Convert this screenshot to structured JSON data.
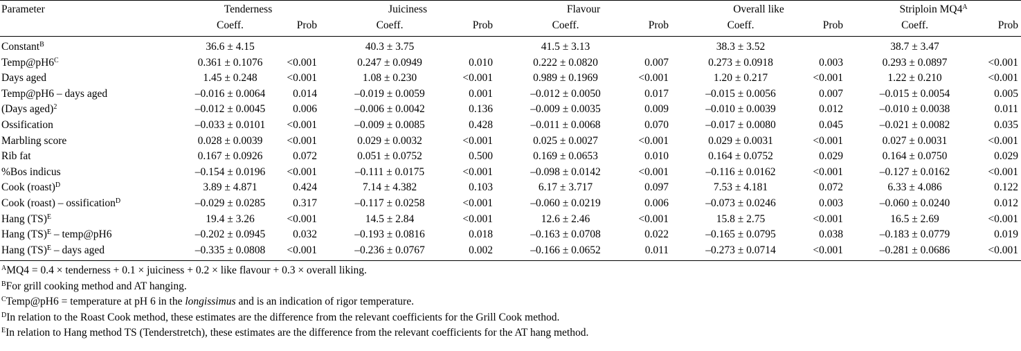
{
  "table": {
    "param_header": "Parameter",
    "groups": [
      {
        "name": "Tenderness",
        "sup": ""
      },
      {
        "name": "Juiciness",
        "sup": ""
      },
      {
        "name": "Flavour",
        "sup": ""
      },
      {
        "name": "Overall like",
        "sup": ""
      },
      {
        "name": "Striploin MQ4",
        "sup": "A"
      }
    ],
    "coeff_label": "Coeff.",
    "prob_label": "Prob",
    "rows": [
      {
        "label": "Constant",
        "sup": "B",
        "suffix": "",
        "values": [
          [
            "36.6 ± 4.15",
            ""
          ],
          [
            "40.3 ± 3.75",
            ""
          ],
          [
            "41.5 ± 3.13",
            ""
          ],
          [
            "38.3 ± 3.52",
            ""
          ],
          [
            "38.7 ± 3.47",
            ""
          ]
        ]
      },
      {
        "label": "Temp@pH6",
        "sup": "C",
        "suffix": "",
        "values": [
          [
            "0.361 ± 0.1076",
            "<0.001"
          ],
          [
            "0.247 ± 0.0949",
            "0.010"
          ],
          [
            "0.222 ± 0.0820",
            "0.007"
          ],
          [
            "0.273 ± 0.0918",
            "0.003"
          ],
          [
            "0.293 ± 0.0897",
            "<0.001"
          ]
        ]
      },
      {
        "label": "Days aged",
        "sup": "",
        "suffix": "",
        "values": [
          [
            "1.45 ± 0.248",
            "<0.001"
          ],
          [
            "1.08 ± 0.230",
            "<0.001"
          ],
          [
            "0.989 ± 0.1969",
            "<0.001"
          ],
          [
            "1.20 ± 0.217",
            "<0.001"
          ],
          [
            "1.22 ± 0.210",
            "<0.001"
          ]
        ]
      },
      {
        "label": "Temp@pH6 – days aged",
        "sup": "",
        "suffix": "",
        "values": [
          [
            "–0.016 ± 0.0064",
            "0.014"
          ],
          [
            "–0.019 ± 0.0059",
            "0.001"
          ],
          [
            "–0.012 ± 0.0050",
            "0.017"
          ],
          [
            "–0.015 ± 0.0056",
            "0.007"
          ],
          [
            "–0.015 ± 0.0054",
            "0.005"
          ]
        ]
      },
      {
        "label": "(Days aged)",
        "sup": "2",
        "suffix": "",
        "values": [
          [
            "–0.012 ± 0.0045",
            "0.006"
          ],
          [
            "–0.006 ± 0.0042",
            "0.136"
          ],
          [
            "–0.009 ± 0.0035",
            "0.009"
          ],
          [
            "–0.010 ± 0.0039",
            "0.012"
          ],
          [
            "–0.010 ± 0.0038",
            "0.011"
          ]
        ]
      },
      {
        "label": "Ossification",
        "sup": "",
        "suffix": "",
        "values": [
          [
            "–0.033 ± 0.0101",
            "<0.001"
          ],
          [
            "–0.009 ± 0.0085",
            "0.428"
          ],
          [
            "–0.011 ± 0.0068",
            "0.070"
          ],
          [
            "–0.017 ± 0.0080",
            "0.045"
          ],
          [
            "–0.021 ± 0.0082",
            "0.035"
          ]
        ]
      },
      {
        "label": "Marbling score",
        "sup": "",
        "suffix": "",
        "values": [
          [
            "0.028 ± 0.0039",
            "<0.001"
          ],
          [
            "0.029 ± 0.0032",
            "<0.001"
          ],
          [
            "0.025 ± 0.0027",
            "<0.001"
          ],
          [
            "0.029 ± 0.0031",
            "<0.001"
          ],
          [
            "0.027 ± 0.0031",
            "<0.001"
          ]
        ]
      },
      {
        "label": "Rib fat",
        "sup": "",
        "suffix": "",
        "values": [
          [
            "0.167 ± 0.0926",
            "0.072"
          ],
          [
            "0.051 ± 0.0752",
            "0.500"
          ],
          [
            "0.169 ± 0.0653",
            "0.010"
          ],
          [
            "0.164 ± 0.0752",
            "0.029"
          ],
          [
            "0.164 ± 0.0750",
            "0.029"
          ]
        ]
      },
      {
        "label": "%Bos indicus",
        "sup": "",
        "suffix": "",
        "values": [
          [
            "–0.154 ± 0.0196",
            "<0.001"
          ],
          [
            "–0.111 ± 0.0175",
            "<0.001"
          ],
          [
            "–0.098 ± 0.0142",
            "<0.001"
          ],
          [
            "–0.116 ± 0.0162",
            "<0.001"
          ],
          [
            "–0.127 ± 0.0162",
            "<0.001"
          ]
        ]
      },
      {
        "label": "Cook (roast)",
        "sup": "D",
        "suffix": "",
        "values": [
          [
            "3.89 ± 4.871",
            "0.424"
          ],
          [
            "7.14 ± 4.382",
            "0.103"
          ],
          [
            "6.17 ± 3.717",
            "0.097"
          ],
          [
            "7.53 ± 4.181",
            "0.072"
          ],
          [
            "6.33 ± 4.086",
            "0.122"
          ]
        ]
      },
      {
        "label": "Cook (roast) – ossification",
        "sup": "D",
        "suffix": "",
        "values": [
          [
            "–0.029 ± 0.0285",
            "0.317"
          ],
          [
            "–0.117 ± 0.0258",
            "<0.001"
          ],
          [
            "–0.060 ± 0.0219",
            "0.006"
          ],
          [
            "–0.073 ± 0.0246",
            "0.003"
          ],
          [
            "–0.060 ± 0.0240",
            "0.012"
          ]
        ]
      },
      {
        "label": "Hang (TS)",
        "sup": "E",
        "suffix": "",
        "values": [
          [
            "19.4 ± 3.26",
            "<0.001"
          ],
          [
            "14.5 ± 2.84",
            "<0.001"
          ],
          [
            "12.6 ± 2.46",
            "<0.001"
          ],
          [
            "15.8 ± 2.75",
            "<0.001"
          ],
          [
            "16.5 ± 2.69",
            "<0.001"
          ]
        ]
      },
      {
        "label": "Hang (TS)",
        "sup": "E",
        "suffix": " – temp@pH6",
        "values": [
          [
            "–0.202 ± 0.0945",
            "0.032"
          ],
          [
            "–0.193 ± 0.0816",
            "0.018"
          ],
          [
            "–0.163 ± 0.0708",
            "0.022"
          ],
          [
            "–0.165 ± 0.0795",
            "0.038"
          ],
          [
            "–0.183 ± 0.0779",
            "0.019"
          ]
        ]
      },
      {
        "label": "Hang (TS)",
        "sup": "E",
        "suffix": " – days aged",
        "values": [
          [
            "–0.335 ± 0.0808",
            "<0.001"
          ],
          [
            "–0.236 ± 0.0767",
            "0.002"
          ],
          [
            "–0.166 ± 0.0652",
            "0.011"
          ],
          [
            "–0.273 ± 0.0714",
            "<0.001"
          ],
          [
            "–0.281 ± 0.0686",
            "<0.001"
          ]
        ]
      }
    ]
  },
  "footnotes": [
    {
      "sup": "A",
      "parts": [
        {
          "text": "MQ4 = 0.4 × tenderness + 0.1 × juiciness + 0.2 × like flavour + 0.3 × overall liking.",
          "italic": false
        }
      ]
    },
    {
      "sup": "B",
      "parts": [
        {
          "text": "For grill cooking method and AT hanging.",
          "italic": false
        }
      ]
    },
    {
      "sup": "C",
      "parts": [
        {
          "text": "Temp@pH6 = temperature at pH 6 in the ",
          "italic": false
        },
        {
          "text": "longissimus",
          "italic": true
        },
        {
          "text": " and is an indication of rigor temperature.",
          "italic": false
        }
      ]
    },
    {
      "sup": "D",
      "parts": [
        {
          "text": "In relation to the Roast Cook method, these estimates are the difference from the relevant coefficients for the Grill Cook method.",
          "italic": false
        }
      ]
    },
    {
      "sup": "E",
      "parts": [
        {
          "text": "In relation to Hang method TS (Tenderstretch), these estimates are the difference from the relevant coefficients for the AT hang method.",
          "italic": false
        }
      ]
    }
  ]
}
